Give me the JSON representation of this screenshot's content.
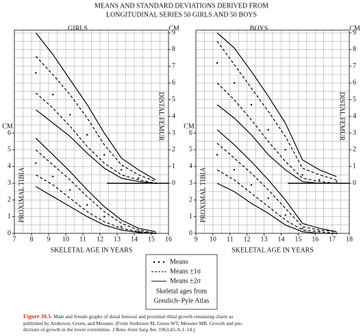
{
  "title_lines": [
    "MEANS AND STANDARD DEVIATIONS DERIVED FROM",
    "LONGITUDINAL SERIES 50 GIRLS AND 50 BOYS"
  ],
  "chart_data": [
    {
      "type": "line",
      "title": "GIRLS",
      "xlabel": "SKELETAL AGE IN YEARS",
      "ylabel": "CM",
      "y2label": "CM",
      "tibia_label": "PROXIMAL TIBIA",
      "femur_label": "DISTAL FEMUR",
      "x": [
        8.25,
        9.25,
        10.25,
        11.25,
        12.25,
        13.25,
        14.25,
        15.25
      ],
      "xlim": [
        7,
        16
      ],
      "xticks": [
        7,
        8,
        9,
        10,
        11,
        12,
        13,
        14,
        15,
        16
      ],
      "ylim": [
        0,
        12
      ],
      "yticks": [
        0,
        1,
        2,
        3,
        4,
        5,
        6
      ],
      "y2lim": [
        -3,
        9
      ],
      "y2ticks": [
        0,
        1,
        2,
        3,
        4,
        5,
        6,
        7,
        8,
        9
      ],
      "grid": true,
      "minor_grid": 0.5,
      "series": [
        {
          "axis": "y2",
          "style": "solid",
          "color": "#000000",
          "values": [
            9.0,
            7.7,
            6.2,
            4.7,
            3.0,
            1.5,
            0.8,
            0.2
          ]
        },
        {
          "axis": "y2",
          "style": "dashed",
          "color": "#000000",
          "values": [
            7.6,
            6.5,
            5.3,
            3.9,
            2.3,
            1.1,
            0.5,
            0.1
          ]
        },
        {
          "axis": "y2",
          "style": "dots",
          "color": "#000000",
          "values": [
            6.6,
            5.3,
            4.1,
            2.9,
            1.7,
            0.8,
            0.3,
            0
          ]
        },
        {
          "axis": "y2",
          "style": "dashed",
          "color": "#000000",
          "values": [
            5.4,
            4.5,
            3.4,
            2.2,
            1.2,
            0.5,
            0.2,
            0
          ]
        },
        {
          "axis": "y2",
          "style": "solid",
          "color": "#000000",
          "values": [
            4.4,
            3.6,
            2.8,
            1.8,
            0.9,
            0.3,
            0.1,
            0
          ]
        },
        {
          "axis": "y",
          "style": "solid",
          "color": "#000000",
          "values": [
            5.7,
            4.7,
            3.7,
            2.6,
            1.6,
            0.8,
            0.3,
            0.1
          ]
        },
        {
          "axis": "y",
          "style": "dashed",
          "color": "#000000",
          "values": [
            5.0,
            4.1,
            3.2,
            2.2,
            1.3,
            0.6,
            0.2,
            0
          ]
        },
        {
          "axis": "y",
          "style": "dots",
          "color": "#000000",
          "values": [
            4.2,
            3.4,
            2.6,
            1.7,
            1.0,
            0.4,
            0.1,
            0
          ]
        },
        {
          "axis": "y",
          "style": "dashed",
          "color": "#000000",
          "values": [
            3.5,
            2.9,
            2.1,
            1.3,
            0.7,
            0.3,
            0.1,
            0
          ]
        },
        {
          "axis": "y",
          "style": "solid",
          "color": "#000000",
          "values": [
            2.8,
            2.2,
            1.6,
            1.0,
            0.5,
            0.2,
            0.05,
            0
          ]
        }
      ]
    },
    {
      "type": "line",
      "title": "BOYS",
      "xlabel": "SKELETAL AGE IN YEARS",
      "ylabel": "CM",
      "y2label": "CM",
      "tibia_label": "PROXIMAL TIBIA",
      "femur_label": "DISTAL FEMUR",
      "x": [
        10.25,
        11.25,
        12.25,
        13.25,
        14.25,
        15.25,
        16.25,
        17.25
      ],
      "xlim": [
        9,
        18
      ],
      "xticks": [
        9,
        10,
        11,
        12,
        13,
        14,
        15,
        16,
        17,
        18
      ],
      "ylim": [
        0,
        12
      ],
      "yticks": [
        0,
        1,
        2,
        3,
        4,
        5,
        6
      ],
      "y2lim": [
        -3,
        9
      ],
      "y2ticks": [
        0,
        1,
        2,
        3,
        4,
        5,
        6,
        7,
        8,
        9
      ],
      "grid": true,
      "minor_grid": 0.5,
      "series": [
        {
          "axis": "y2",
          "style": "solid",
          "color": "#000000",
          "values": [
            9.0,
            8.1,
            6.7,
            5.2,
            3.6,
            1.4,
            0.8,
            0.4
          ]
        },
        {
          "axis": "y2",
          "style": "dashed",
          "color": "#000000",
          "values": [
            8.5,
            7.1,
            5.7,
            4.3,
            2.8,
            0.9,
            0.5,
            0.2
          ]
        },
        {
          "axis": "y2",
          "style": "dots",
          "color": "#000000",
          "values": [
            7.2,
            6.0,
            4.7,
            3.2,
            2.0,
            0.5,
            0.2,
            0.1
          ]
        },
        {
          "axis": "y2",
          "style": "dashed",
          "color": "#000000",
          "values": [
            6.0,
            5.0,
            3.8,
            2.5,
            1.3,
            0.3,
            0.1,
            0
          ]
        },
        {
          "axis": "y2",
          "style": "solid",
          "color": "#000000",
          "values": [
            4.7,
            3.9,
            2.9,
            1.7,
            0.8,
            0.1,
            0,
            0
          ]
        },
        {
          "axis": "y",
          "style": "solid",
          "color": "#000000",
          "values": [
            6.2,
            5.3,
            4.3,
            3.2,
            2.0,
            0.6,
            0.3,
            0.1
          ]
        },
        {
          "axis": "y",
          "style": "dashed",
          "color": "#000000",
          "values": [
            5.4,
            4.5,
            3.6,
            2.6,
            1.5,
            0.4,
            0.2,
            0.1
          ]
        },
        {
          "axis": "y",
          "style": "dots",
          "color": "#000000",
          "values": [
            4.7,
            3.8,
            2.9,
            2.1,
            1.1,
            0.3,
            0.1,
            0
          ]
        },
        {
          "axis": "y",
          "style": "dashed",
          "color": "#000000",
          "values": [
            3.8,
            3.2,
            2.4,
            1.6,
            0.8,
            0.2,
            0.1,
            0
          ]
        },
        {
          "axis": "y",
          "style": "solid",
          "color": "#000000",
          "values": [
            3.0,
            2.5,
            1.8,
            1.2,
            0.5,
            0.1,
            0,
            0
          ]
        }
      ]
    }
  ],
  "legend": {
    "items": [
      "Means",
      "Means ±1σ",
      "Means ±2σ"
    ],
    "note_lines": [
      "Skeletal ages from",
      "Greulich–Pyle Atlas"
    ]
  },
  "caption": {
    "label": "Figure 38.5.",
    "lines": [
      "Male and female graphs of distal femoral and proximal tibial growth remaining charts as",
      "published by Anderson, Green, and Messner. (From Anderson M, Green WT, Messner MB. Growth and pre-",
      "dictions of growth in the lower extremities. "
    ],
    "journal": "J Bone Joint Surg Am.",
    "citation_end": " 1963;45-A:1–14.)"
  }
}
